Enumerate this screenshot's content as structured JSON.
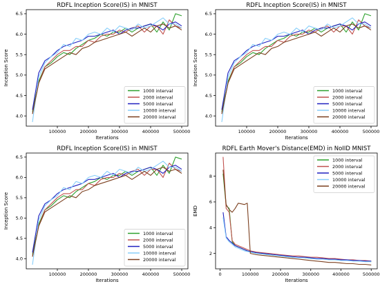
{
  "chart_data": [
    {
      "type": "line",
      "title": "RDFL Inception Score(IS) in MNIST",
      "xlabel": "Iterations",
      "ylabel": "Inception Score",
      "xlim": [
        0,
        520000
      ],
      "ylim": [
        3.75,
        6.6
      ],
      "xticks": [
        100000,
        200000,
        300000,
        400000,
        500000
      ],
      "xtick_labels": [
        "100000",
        "200000",
        "300000",
        "400000",
        "500000"
      ],
      "yticks": [
        4.0,
        4.5,
        5.0,
        5.5,
        6.0,
        6.5
      ],
      "ytick_labels": [
        "4.0",
        "4.5",
        "5.0",
        "5.5",
        "6.0",
        "6.5"
      ],
      "legend": "lower-right",
      "grid": false,
      "x": [
        20000,
        40000,
        60000,
        80000,
        100000,
        120000,
        140000,
        160000,
        180000,
        200000,
        220000,
        240000,
        260000,
        280000,
        300000,
        320000,
        340000,
        360000,
        380000,
        400000,
        420000,
        440000,
        460000,
        480000,
        500000
      ],
      "series": [
        {
          "name": "1000 interval",
          "color": "#2ca02c",
          "values": [
            4.1,
            4.85,
            5.2,
            5.3,
            5.45,
            5.55,
            5.5,
            5.65,
            5.75,
            5.85,
            5.9,
            6.0,
            5.95,
            6.05,
            6.05,
            6.15,
            6.05,
            6.15,
            6.2,
            6.25,
            6.05,
            6.3,
            6.1,
            6.5,
            6.45
          ]
        },
        {
          "name": "2000 interval",
          "color": "#c0504d",
          "values": [
            4.05,
            4.8,
            5.2,
            5.35,
            5.5,
            5.6,
            5.6,
            5.7,
            5.7,
            5.85,
            5.8,
            5.95,
            6.0,
            6.0,
            6.1,
            6.05,
            6.15,
            6.2,
            6.05,
            6.2,
            6.2,
            6.0,
            6.35,
            6.2,
            6.15
          ]
        },
        {
          "name": "5000 interval",
          "color": "#1f1fbf",
          "values": [
            4.15,
            5.05,
            5.35,
            5.45,
            5.6,
            5.7,
            5.75,
            5.8,
            5.85,
            5.95,
            5.95,
            6.0,
            6.05,
            6.1,
            6.0,
            6.1,
            6.15,
            6.15,
            6.2,
            6.25,
            6.2,
            6.1,
            6.25,
            6.3,
            6.2
          ]
        },
        {
          "name": "10000 interval",
          "color": "#87cefa",
          "values": [
            3.85,
            4.95,
            5.3,
            5.45,
            5.55,
            5.75,
            5.7,
            5.9,
            5.85,
            6.0,
            6.05,
            6.0,
            6.15,
            6.05,
            6.2,
            6.15,
            6.1,
            6.25,
            6.15,
            6.2,
            6.3,
            6.4,
            6.25,
            6.25,
            6.15
          ]
        },
        {
          "name": "20000 interval",
          "color": "#7b3f1e",
          "values": [
            4.05,
            4.8,
            5.15,
            5.25,
            5.35,
            5.45,
            5.55,
            5.5,
            5.65,
            5.7,
            5.8,
            5.85,
            5.9,
            5.95,
            6.0,
            6.05,
            5.95,
            6.05,
            6.15,
            6.05,
            6.2,
            6.25,
            6.15,
            6.2,
            6.1
          ]
        }
      ]
    },
    {
      "type": "line",
      "title": "RDFL Inception Score(IS) in MNIST",
      "xlabel": "Iterations",
      "ylabel": "Inception Score",
      "xlim": [
        0,
        520000
      ],
      "ylim": [
        3.75,
        6.6
      ],
      "xticks": [
        100000,
        200000,
        300000,
        400000,
        500000
      ],
      "xtick_labels": [
        "100000",
        "200000",
        "300000",
        "400000",
        "500000"
      ],
      "yticks": [
        4.0,
        4.5,
        5.0,
        5.5,
        6.0,
        6.5
      ],
      "ytick_labels": [
        "4.0",
        "4.5",
        "5.0",
        "5.5",
        "6.0",
        "6.5"
      ],
      "legend": "lower-right",
      "grid": false,
      "x": [
        20000,
        40000,
        60000,
        80000,
        100000,
        120000,
        140000,
        160000,
        180000,
        200000,
        220000,
        240000,
        260000,
        280000,
        300000,
        320000,
        340000,
        360000,
        380000,
        400000,
        420000,
        440000,
        460000,
        480000,
        500000
      ],
      "series": [
        {
          "name": "1000 interval",
          "color": "#2ca02c",
          "values": [
            4.1,
            4.85,
            5.2,
            5.3,
            5.45,
            5.55,
            5.5,
            5.65,
            5.75,
            5.85,
            5.9,
            6.0,
            5.95,
            6.05,
            6.05,
            6.15,
            6.05,
            6.15,
            6.2,
            6.25,
            6.05,
            6.3,
            6.1,
            6.5,
            6.45
          ]
        },
        {
          "name": "2000 interval",
          "color": "#c0504d",
          "values": [
            4.05,
            4.8,
            5.2,
            5.35,
            5.5,
            5.6,
            5.6,
            5.7,
            5.7,
            5.85,
            5.8,
            5.95,
            6.0,
            6.0,
            6.1,
            6.05,
            6.15,
            6.2,
            6.05,
            6.2,
            6.2,
            6.0,
            6.35,
            6.2,
            6.15
          ]
        },
        {
          "name": "5000 interval",
          "color": "#1f1fbf",
          "values": [
            4.15,
            5.05,
            5.35,
            5.45,
            5.6,
            5.7,
            5.75,
            5.8,
            5.85,
            5.95,
            5.95,
            6.0,
            6.05,
            6.1,
            6.0,
            6.1,
            6.15,
            6.15,
            6.2,
            6.25,
            6.2,
            6.1,
            6.25,
            6.3,
            6.2
          ]
        },
        {
          "name": "10000 interval",
          "color": "#87cefa",
          "values": [
            3.85,
            4.95,
            5.3,
            5.45,
            5.55,
            5.75,
            5.7,
            5.9,
            5.85,
            6.0,
            6.05,
            6.0,
            6.15,
            6.05,
            6.2,
            6.15,
            6.1,
            6.25,
            6.15,
            6.2,
            6.3,
            6.4,
            6.25,
            6.25,
            6.15
          ]
        },
        {
          "name": "20000 interval",
          "color": "#7b3f1e",
          "values": [
            4.05,
            4.8,
            5.15,
            5.25,
            5.35,
            5.45,
            5.55,
            5.5,
            5.65,
            5.7,
            5.8,
            5.85,
            5.9,
            5.95,
            6.0,
            6.05,
            5.95,
            6.05,
            6.15,
            6.05,
            6.2,
            6.25,
            6.15,
            6.2,
            6.1
          ]
        }
      ]
    },
    {
      "type": "line",
      "title": "RDFL Inception Score(IS) in MNIST",
      "xlabel": "Iterations",
      "ylabel": "Inception Score",
      "xlim": [
        0,
        520000
      ],
      "ylim": [
        3.75,
        6.6
      ],
      "xticks": [
        100000,
        200000,
        300000,
        400000,
        500000
      ],
      "xtick_labels": [
        "100000",
        "200000",
        "300000",
        "400000",
        "500000"
      ],
      "yticks": [
        4.0,
        4.5,
        5.0,
        5.5,
        6.0,
        6.5
      ],
      "ytick_labels": [
        "4.0",
        "4.5",
        "5.0",
        "5.5",
        "6.0",
        "6.5"
      ],
      "legend": "lower-right",
      "grid": false,
      "x": [
        20000,
        40000,
        60000,
        80000,
        100000,
        120000,
        140000,
        160000,
        180000,
        200000,
        220000,
        240000,
        260000,
        280000,
        300000,
        320000,
        340000,
        360000,
        380000,
        400000,
        420000,
        440000,
        460000,
        480000,
        500000
      ],
      "series": [
        {
          "name": "1000 interval",
          "color": "#2ca02c",
          "values": [
            4.1,
            4.85,
            5.2,
            5.3,
            5.45,
            5.55,
            5.5,
            5.65,
            5.75,
            5.85,
            5.9,
            6.0,
            5.95,
            6.05,
            6.05,
            6.15,
            6.05,
            6.15,
            6.2,
            6.25,
            6.05,
            6.3,
            6.1,
            6.5,
            6.45
          ]
        },
        {
          "name": "2000 interval",
          "color": "#c0504d",
          "values": [
            4.05,
            4.8,
            5.2,
            5.35,
            5.5,
            5.6,
            5.6,
            5.7,
            5.7,
            5.85,
            5.8,
            5.95,
            6.0,
            6.0,
            6.1,
            6.05,
            6.15,
            6.2,
            6.05,
            6.2,
            6.2,
            6.0,
            6.35,
            6.2,
            6.15
          ]
        },
        {
          "name": "5000 interval",
          "color": "#1f1fbf",
          "values": [
            4.15,
            5.05,
            5.35,
            5.45,
            5.6,
            5.7,
            5.75,
            5.8,
            5.85,
            5.95,
            5.95,
            6.0,
            6.05,
            6.1,
            6.0,
            6.1,
            6.15,
            6.15,
            6.2,
            6.25,
            6.2,
            6.1,
            6.25,
            6.3,
            6.2
          ]
        },
        {
          "name": "10000 interval",
          "color": "#87cefa",
          "values": [
            3.85,
            4.95,
            5.3,
            5.45,
            5.55,
            5.75,
            5.7,
            5.9,
            5.85,
            6.0,
            6.05,
            6.0,
            6.15,
            6.05,
            6.2,
            6.15,
            6.1,
            6.25,
            6.15,
            6.2,
            6.3,
            6.4,
            6.25,
            6.25,
            6.15
          ]
        },
        {
          "name": "20000 interval",
          "color": "#7b3f1e",
          "values": [
            4.05,
            4.8,
            5.15,
            5.25,
            5.35,
            5.45,
            5.55,
            5.5,
            5.65,
            5.7,
            5.8,
            5.85,
            5.9,
            5.95,
            6.0,
            6.05,
            5.95,
            6.05,
            6.15,
            6.05,
            6.2,
            6.25,
            6.15,
            6.2,
            6.1
          ]
        }
      ]
    },
    {
      "type": "line",
      "title": "RDFL Earth Mover's Distance(EMD) in NoIID MNIST",
      "xlabel": "Iterations",
      "ylabel": "EMD",
      "xlim": [
        -15000,
        520000
      ],
      "ylim": [
        0.8,
        9.8
      ],
      "xticks": [
        0,
        100000,
        200000,
        300000,
        400000,
        500000
      ],
      "xtick_labels": [
        "0",
        "100000",
        "200000",
        "300000",
        "400000",
        "500000"
      ],
      "yticks": [
        2,
        4,
        6,
        8
      ],
      "ytick_labels": [
        "2",
        "4",
        "6",
        "8"
      ],
      "legend": "upper-right",
      "grid": false,
      "x": [
        10000,
        20000,
        30000,
        40000,
        50000,
        60000,
        70000,
        80000,
        90000,
        100000,
        120000,
        140000,
        160000,
        180000,
        200000,
        220000,
        240000,
        260000,
        280000,
        300000,
        320000,
        340000,
        360000,
        380000,
        400000,
        420000,
        440000,
        460000,
        480000,
        500000
      ],
      "series": [
        {
          "name": "1000 interval",
          "color": "#2ca02c",
          "values": [
            8.2,
            5.7,
            5.5,
            2.9,
            2.6,
            2.5,
            2.4,
            2.3,
            2.2,
            2.1,
            2.0,
            1.95,
            1.9,
            1.85,
            1.8,
            1.75,
            1.7,
            1.7,
            1.65,
            1.6,
            1.6,
            1.55,
            1.55,
            1.5,
            1.5,
            1.45,
            1.45,
            1.4,
            1.4,
            1.35
          ]
        },
        {
          "name": "2000 interval",
          "color": "#c0504d",
          "values": [
            9.5,
            5.5,
            5.2,
            3.0,
            2.7,
            2.6,
            2.5,
            2.4,
            2.3,
            2.2,
            2.1,
            2.05,
            2.0,
            1.95,
            1.9,
            1.85,
            1.8,
            1.8,
            1.75,
            1.7,
            1.7,
            1.65,
            1.6,
            1.6,
            1.55,
            1.5,
            1.5,
            1.45,
            1.45,
            1.4
          ]
        },
        {
          "name": "5000 interval",
          "color": "#1f1fbf",
          "values": [
            5.2,
            3.3,
            3.0,
            2.8,
            2.6,
            2.5,
            2.4,
            2.3,
            2.2,
            2.15,
            2.05,
            2.0,
            1.95,
            1.9,
            1.85,
            1.8,
            1.75,
            1.7,
            1.7,
            1.65,
            1.6,
            1.6,
            1.55,
            1.55,
            1.5,
            1.5,
            1.45,
            1.45,
            1.4,
            1.4
          ]
        },
        {
          "name": "10000 interval",
          "color": "#87cefa",
          "values": [
            4.8,
            3.2,
            2.9,
            2.7,
            2.5,
            2.4,
            2.3,
            2.2,
            2.15,
            2.1,
            2.0,
            1.95,
            1.9,
            1.85,
            1.8,
            1.75,
            1.7,
            1.65,
            1.65,
            1.6,
            1.55,
            1.55,
            1.5,
            1.5,
            1.45,
            1.45,
            1.4,
            1.4,
            1.35,
            1.35
          ]
        },
        {
          "name": "20000 interval",
          "color": "#7b3f1e",
          "values": [
            8.5,
            5.8,
            5.4,
            5.2,
            5.5,
            5.9,
            5.85,
            5.8,
            5.9,
            2.0,
            1.9,
            1.85,
            1.8,
            1.75,
            1.7,
            1.65,
            1.6,
            1.55,
            1.5,
            1.45,
            1.4,
            1.35,
            1.3,
            1.3,
            1.25,
            1.2,
            1.2,
            1.15,
            1.15,
            1.1
          ]
        }
      ]
    }
  ]
}
